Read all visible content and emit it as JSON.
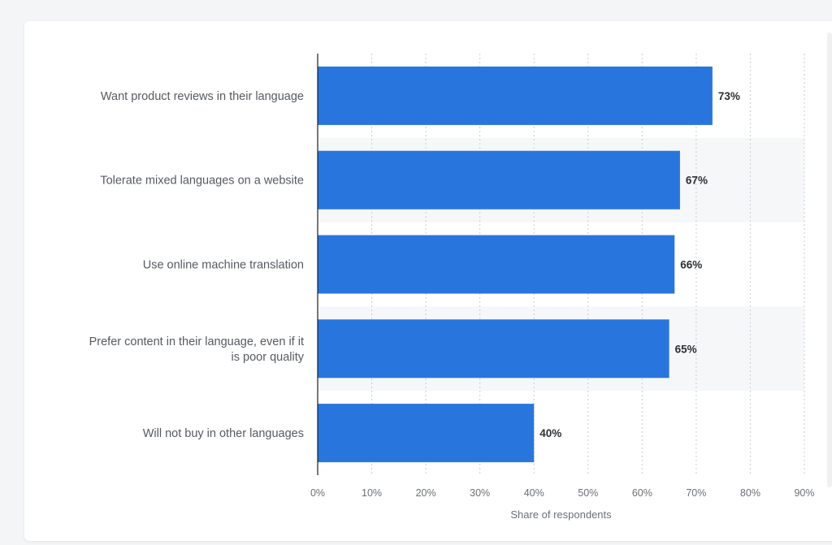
{
  "chart_data": {
    "type": "bar",
    "orientation": "horizontal",
    "categories": [
      "Want product reviews in their language",
      "Tolerate mixed languages on a website",
      "Use online machine translation",
      "Prefer content in their language, even if it is poor quality",
      "Will not buy in other languages"
    ],
    "category_lines": [
      [
        "Want product reviews in their language"
      ],
      [
        "Tolerate mixed languages on a website"
      ],
      [
        "Use online machine translation"
      ],
      [
        "Prefer content in their language, even if it",
        "is poor quality"
      ],
      [
        "Will not buy in other languages"
      ]
    ],
    "values": [
      73,
      67,
      66,
      65,
      40
    ],
    "value_labels": [
      "73%",
      "67%",
      "66%",
      "65%",
      "40%"
    ],
    "xticks": [
      0,
      10,
      20,
      30,
      40,
      50,
      60,
      70,
      80,
      90
    ],
    "xtick_labels": [
      "0%",
      "10%",
      "20%",
      "30%",
      "40%",
      "50%",
      "60%",
      "70%",
      "80%",
      "90%"
    ],
    "xlim": [
      0,
      90
    ],
    "xlabel": "Share of respondents",
    "ylabel": "",
    "title": "",
    "grid": true,
    "colors": {
      "bar": "#2876dd",
      "band": "#f6f7f8",
      "grid": "#c9cdd2",
      "axis": "#1f1f1f"
    }
  }
}
